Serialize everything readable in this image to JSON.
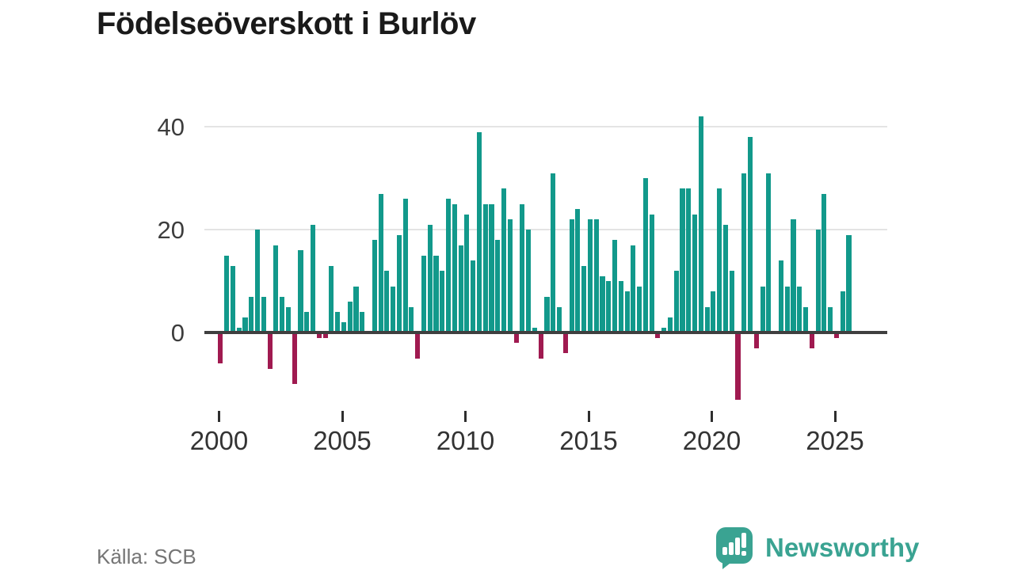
{
  "header": {
    "title": "Födelseöverskott i Burlöv"
  },
  "footer": {
    "source_label": "Källa: SCB",
    "brand_name": "Newsworthy"
  },
  "colors": {
    "positive_bar": "#12998b",
    "negative_bar": "#a01a50",
    "axis_line": "#3f3f3f",
    "gridline": "#e4e4e4",
    "title_text": "#1a1a1a",
    "tick_text": "#333333",
    "source_text": "#757575",
    "brand_teal": "#3aa392"
  },
  "chart_data": {
    "type": "bar",
    "title": "Födelseöverskott i Burlöv",
    "xlabel": "",
    "ylabel": "",
    "frequency": "quarterly",
    "start_year": 2000,
    "start_quarter": "Q1",
    "end_year": 2025,
    "end_quarter": "Q3",
    "ylim": [
      -15,
      45
    ],
    "grid": "horizontal",
    "legend": "none",
    "y_tick_labels": [
      "0",
      "20",
      "40"
    ],
    "y_tick_values": [
      0,
      20,
      40
    ],
    "x_tick_labels": [
      "2000",
      "2005",
      "2010",
      "2015",
      "2020",
      "2025"
    ],
    "values": [
      -6,
      15,
      13,
      1,
      3,
      7,
      20,
      7,
      -7,
      17,
      7,
      5,
      -10,
      16,
      4,
      21,
      -1,
      -1,
      13,
      4,
      2,
      6,
      9,
      4,
      0,
      18,
      27,
      12,
      9,
      19,
      26,
      5,
      -5,
      15,
      21,
      15,
      12,
      26,
      25,
      17,
      23,
      14,
      39,
      25,
      25,
      18,
      28,
      22,
      -2,
      25,
      20,
      1,
      -5,
      7,
      31,
      5,
      -4,
      22,
      24,
      13,
      22,
      22,
      11,
      10,
      18,
      10,
      8,
      17,
      9,
      30,
      23,
      -1,
      1,
      3,
      12,
      28,
      28,
      23,
      42,
      5,
      8,
      28,
      21,
      12,
      -13,
      31,
      38,
      -3,
      9,
      31,
      0,
      14,
      9,
      22,
      9,
      5,
      -3,
      20,
      27,
      5,
      -1,
      8,
      19
    ]
  }
}
